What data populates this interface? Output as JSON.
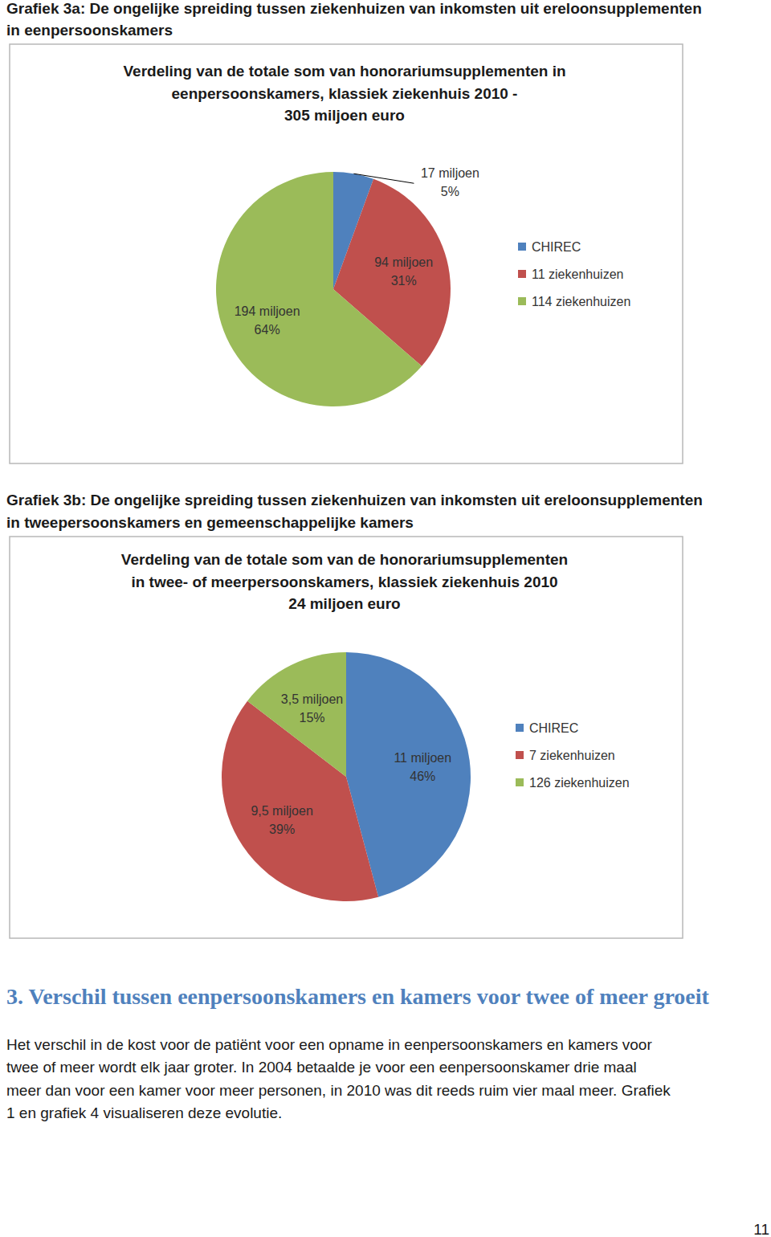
{
  "chart_data": [
    {
      "type": "pie",
      "title": [
        "Verdeling van de totale som van honorariumsupplementen in",
        "eenpersoonskamers, klassiek ziekenhuis 2010 -",
        "305 miljoen euro"
      ],
      "categories": [
        "CHIREC",
        "11 ziekenhuizen",
        "114 ziekenhuizen"
      ],
      "values": [
        17,
        94,
        194
      ],
      "value_labels": [
        "17 miljoen",
        "94 miljoen",
        "194 miljoen"
      ],
      "percentage_labels": [
        "5%",
        "31%",
        "64%"
      ],
      "colors": [
        "#4f81bd",
        "#c0504d",
        "#9bbb59"
      ],
      "data_labels": true,
      "legend": "right"
    },
    {
      "type": "pie",
      "title": [
        "Verdeling van de totale som van de honorariumsupplementen",
        "in twee- of meerpersoonskamers, klassiek ziekenhuis 2010",
        "24 miljoen euro"
      ],
      "categories": [
        "CHIREC",
        "7 ziekenhuizen",
        "126 ziekenhuizen"
      ],
      "values": [
        11,
        9.5,
        3.5
      ],
      "value_labels": [
        "11 miljoen",
        "9,5 miljoen",
        "3,5 miljoen"
      ],
      "percentage_labels": [
        "46%",
        "39%",
        "15%"
      ],
      "colors": [
        "#4f81bd",
        "#c0504d",
        "#9bbb59"
      ],
      "data_labels": true,
      "legend": "right"
    }
  ],
  "page": {
    "captions": [
      [
        "Grafiek 3a: De ongelijke spreiding tussen ziekenhuizen van inkomsten uit ereloonsupplementen",
        "in eenpersoonskamers"
      ],
      [
        "Grafiek 3b: De ongelijke spreiding tussen ziekenhuizen van inkomsten uit ereloonsupplementen",
        "in tweepersoonskamers en gemeenschappelijke kamers"
      ]
    ],
    "section_heading": "3. Verschil tussen eenpersoonskamers en kamers voor twee of meer groeit",
    "paragraph": [
      "Het verschil in de kost voor de patiënt voor een opname in eenpersoonskamers en kamers voor",
      "twee of meer wordt elk jaar groter. In 2004 betaalde je voor een eenpersoonskamer drie maal",
      "meer dan voor een kamer voor meer personen, in 2010 was dit reeds ruim vier maal meer. Grafiek",
      "1 en grafiek 4 visualiseren deze evolutie."
    ],
    "page_number": "11"
  }
}
